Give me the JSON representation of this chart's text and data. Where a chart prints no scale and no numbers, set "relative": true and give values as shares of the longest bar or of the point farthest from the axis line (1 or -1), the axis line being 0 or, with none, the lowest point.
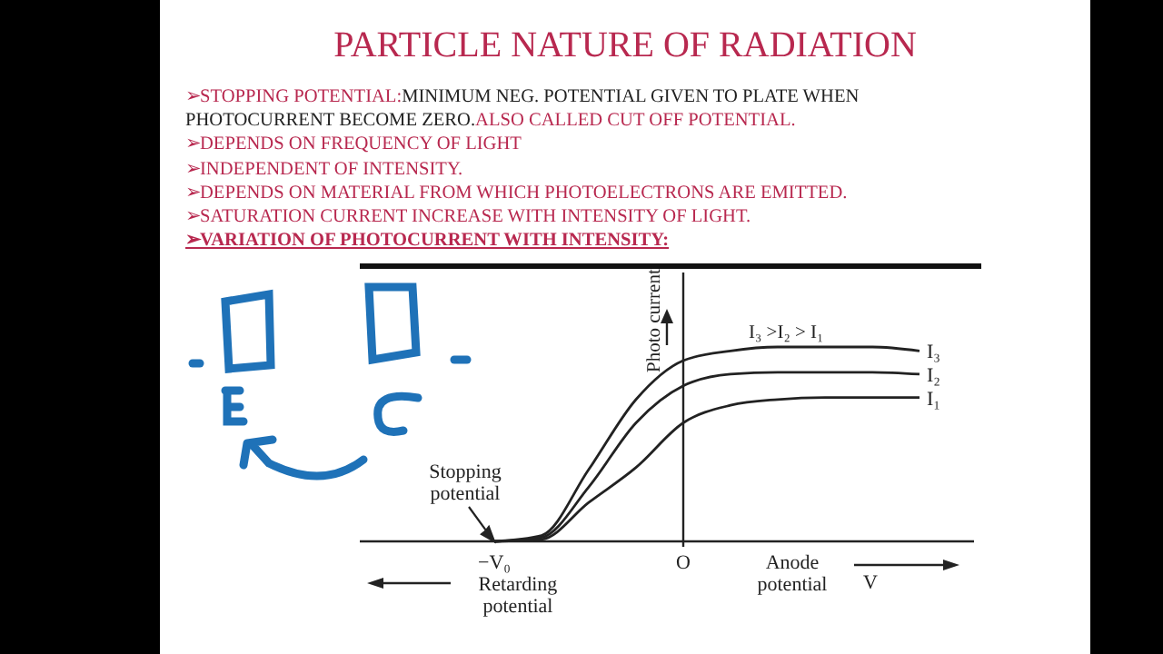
{
  "chart_data": {
    "type": "line",
    "title": "PARTICLE NATURE OF RADIATION",
    "relative": true,
    "categories": [
      null,
      null,
      null,
      "−V₀",
      null,
      null,
      null,
      "O",
      null,
      null,
      null,
      null,
      null,
      null
    ],
    "series": [
      {
        "name": "I₃",
        "color": "#222222",
        "values": [
          null,
          null,
          null,
          0,
          0.03,
          0.37,
          0.73,
          0.93,
          0.98,
          1,
          1,
          1,
          0.98,
          null
        ]
      },
      {
        "name": "I₂",
        "color": "#222222",
        "values": [
          null,
          null,
          null,
          0,
          0.02,
          0.28,
          0.61,
          0.8,
          0.86,
          0.87,
          0.87,
          0.87,
          0.86,
          null
        ]
      },
      {
        "name": "I₁",
        "color": "#222222",
        "values": [
          null,
          null,
          null,
          0,
          0.01,
          0.2,
          0.38,
          0.61,
          0.7,
          0.73,
          0.74,
          0.74,
          0.74,
          null
        ]
      }
    ],
    "xlabel": "Anode potential",
    "ylabel": "Photo current",
    "ref_lines": [
      {
        "axis": "x",
        "value": "O",
        "color": "#222222"
      }
    ],
    "annotations": [
      "➢STOPPING POTENTIAL:",
      "MINIMUM NEG. POTENTIAL GIVEN  TO PLATE WHEN PHOTOCURRENT BECOME ZERO.",
      "ALSO CALLED CUT OFF POTENTIAL.",
      "➢DEPENDS ON FREQUENCY OF LIGHT",
      "➢INDEPENDENT OF INTENSITY.",
      "➢DEPENDS ON MATERIAL FROM WHICH PHOTOELECTRONS ARE EMITTED.",
      "➢SATURATION CURRENT INCREASE WITH INTENSITY OF LIGHT.",
      "➢VARIATION OF PHOTOCURRENT WITH INTENSITY:",
      "I₃ >I₂ > I₁",
      {
        "text": "Stopping potential",
        "x": "−V₀",
        "y": 0
      },
      "Retarding potential",
      "V"
    ],
    "legend": false,
    "line_style": "solid",
    "marker": "none"
  }
}
